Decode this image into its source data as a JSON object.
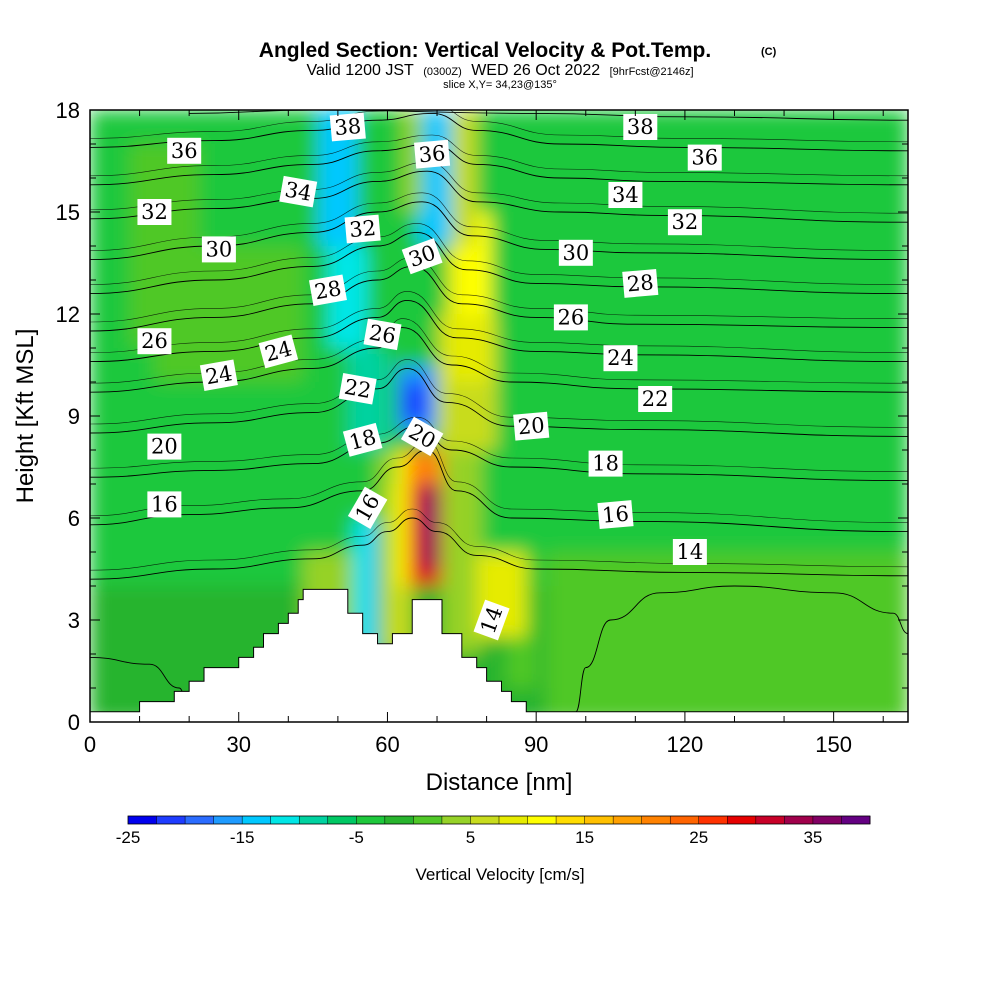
{
  "chart_data": {
    "type": "heatmap",
    "title": "Angled Section: Vertical Velocity & Pot.Temp.",
    "title_mark": "(C)",
    "subtitle_parts": [
      "Valid 1200 JST",
      "(0300Z)",
      "WED 26 Oct 2022",
      "[9hrFcst@2146z]"
    ],
    "slice_text": "slice X,Y= 34,23@135°",
    "xlabel": "Distance [nm]",
    "ylabel": "Height [Kft MSL]",
    "xlim": [
      0,
      165
    ],
    "ylim": [
      0,
      18
    ],
    "xticks": [
      0,
      30,
      60,
      90,
      120,
      150
    ],
    "yticks": [
      0,
      3,
      6,
      9,
      12,
      15,
      18
    ],
    "colorbar": {
      "label": "Vertical Velocity [cm/s]",
      "range": [
        -25,
        40
      ],
      "step": 2.5,
      "tick_values": [
        -25,
        -15,
        -5,
        5,
        15,
        25,
        35
      ],
      "colors": [
        "#0000ee",
        "#1e3cff",
        "#2b6cff",
        "#1e9bff",
        "#00c8ff",
        "#00e6e6",
        "#00d2a0",
        "#00c864",
        "#1ec83c",
        "#28b42d",
        "#50c828",
        "#96d228",
        "#c8dc1e",
        "#e6eb00",
        "#ffff00",
        "#ffdc00",
        "#ffc000",
        "#ffa000",
        "#ff8200",
        "#ff6400",
        "#ff3200",
        "#e60000",
        "#c80028",
        "#a0004b",
        "#820064",
        "#640082"
      ]
    },
    "terrain": [
      [
        0,
        0.3
      ],
      [
        10,
        0.3
      ],
      [
        10,
        0.6
      ],
      [
        17,
        0.6
      ],
      [
        17,
        0.9
      ],
      [
        20,
        0.9
      ],
      [
        20,
        1.2
      ],
      [
        23,
        1.2
      ],
      [
        23,
        1.6
      ],
      [
        30,
        1.6
      ],
      [
        30,
        1.9
      ],
      [
        33,
        1.9
      ],
      [
        33,
        2.2
      ],
      [
        35,
        2.2
      ],
      [
        35,
        2.6
      ],
      [
        38,
        2.6
      ],
      [
        38,
        2.9
      ],
      [
        40,
        2.9
      ],
      [
        40,
        3.2
      ],
      [
        42,
        3.2
      ],
      [
        42,
        3.6
      ],
      [
        43,
        3.6
      ],
      [
        43,
        3.9
      ],
      [
        52,
        3.9
      ],
      [
        52,
        3.2
      ],
      [
        55,
        3.2
      ],
      [
        55,
        2.6
      ],
      [
        58,
        2.6
      ],
      [
        58,
        2.3
      ],
      [
        61,
        2.3
      ],
      [
        61,
        2.6
      ],
      [
        65,
        2.6
      ],
      [
        65,
        3.6
      ],
      [
        71,
        3.6
      ],
      [
        71,
        2.6
      ],
      [
        75,
        2.6
      ],
      [
        75,
        1.9
      ],
      [
        78,
        1.9
      ],
      [
        78,
        1.6
      ],
      [
        80,
        1.6
      ],
      [
        80,
        1.2
      ],
      [
        83,
        1.2
      ],
      [
        83,
        0.9
      ],
      [
        85,
        0.9
      ],
      [
        85,
        0.6
      ],
      [
        88,
        0.6
      ],
      [
        88,
        0.3
      ],
      [
        165,
        0.3
      ]
    ],
    "cells": [
      {
        "x": 0,
        "y": 0,
        "w": 165,
        "h": 18,
        "v": -2
      },
      {
        "x": 0,
        "y": 4,
        "w": 165,
        "h": 14,
        "v": -3
      },
      {
        "x": 92,
        "y": 0,
        "w": 73,
        "h": 5,
        "v": 1
      },
      {
        "x": 13,
        "y": 10,
        "w": 30,
        "h": 4,
        "v": 0
      },
      {
        "x": 8,
        "y": 11,
        "w": 14,
        "h": 6,
        "v": 1
      },
      {
        "x": 43,
        "y": 1,
        "w": 16,
        "h": 4,
        "v": 3
      },
      {
        "x": 46,
        "y": 14,
        "w": 8,
        "h": 4,
        "v": -13
      },
      {
        "x": 48,
        "y": 11,
        "w": 8,
        "h": 3,
        "v": -11
      },
      {
        "x": 52,
        "y": 8,
        "w": 8,
        "h": 3,
        "v": -8
      },
      {
        "x": 53,
        "y": 2,
        "w": 6,
        "h": 4,
        "v": -12
      },
      {
        "x": 56,
        "y": 1,
        "w": 2,
        "h": 5,
        "v": -14
      },
      {
        "x": 58,
        "y": 2,
        "w": 6,
        "h": 6,
        "v": 4
      },
      {
        "x": 60,
        "y": 2,
        "w": 5,
        "h": 5,
        "v": 7
      },
      {
        "x": 62,
        "y": 4,
        "w": 12,
        "h": 4,
        "v": 10
      },
      {
        "x": 64,
        "y": 4,
        "w": 8,
        "h": 4,
        "v": 22
      },
      {
        "x": 65,
        "y": 4,
        "w": 6,
        "h": 3,
        "v": 29
      },
      {
        "x": 67,
        "y": 4.5,
        "w": 3,
        "h": 2.5,
        "v": 35
      },
      {
        "x": 68,
        "y": 5.5,
        "w": 1,
        "h": 1,
        "v": 38
      },
      {
        "x": 71,
        "y": 2,
        "w": 8,
        "h": 6,
        "v": 4
      },
      {
        "x": 70,
        "y": 8,
        "w": 12,
        "h": 4,
        "v": 6
      },
      {
        "x": 72,
        "y": 10,
        "w": 9,
        "h": 4,
        "v": 9
      },
      {
        "x": 74,
        "y": 12,
        "w": 7,
        "h": 3,
        "v": 12
      },
      {
        "x": 72,
        "y": 14,
        "w": 6,
        "h": 4,
        "v": 6
      },
      {
        "x": 62,
        "y": 8.5,
        "w": 8,
        "h": 2,
        "v": -16
      },
      {
        "x": 63,
        "y": 8.8,
        "w": 5,
        "h": 1.2,
        "v": -21
      },
      {
        "x": 66,
        "y": 14,
        "w": 7,
        "h": 4,
        "v": -14
      },
      {
        "x": 63,
        "y": 15,
        "w": 4,
        "h": 3,
        "v": 3
      },
      {
        "x": 84,
        "y": 1,
        "w": 6,
        "h": 4,
        "v": 2
      },
      {
        "x": 78,
        "y": 2.5,
        "w": 10,
        "h": 2.5,
        "v": 8
      },
      {
        "x": 144,
        "y": 6,
        "w": 21,
        "h": 12,
        "v": -3
      },
      {
        "x": 96,
        "y": 6,
        "w": 69,
        "h": 3,
        "v": -4
      }
    ],
    "contours": [
      {
        "level": 14,
        "points": [
          [
            0,
            4.2
          ],
          [
            25,
            4.5
          ],
          [
            45,
            4.8
          ],
          [
            55,
            5.2
          ],
          [
            60,
            5.6
          ],
          [
            65,
            6
          ],
          [
            70,
            5.6
          ],
          [
            78,
            4.9
          ],
          [
            90,
            4.5
          ],
          [
            120,
            4.4
          ],
          [
            165,
            4.3
          ]
        ]
      },
      {
        "level": 16,
        "points": [
          [
            0,
            5.8
          ],
          [
            20,
            6.1
          ],
          [
            40,
            6.3
          ],
          [
            55,
            6.8
          ],
          [
            62,
            7.5
          ],
          [
            68,
            8
          ],
          [
            74,
            6.8
          ],
          [
            85,
            6
          ],
          [
            110,
            5.9
          ],
          [
            165,
            5.6
          ]
        ]
      },
      {
        "level": 18,
        "points": [
          [
            0,
            7.2
          ],
          [
            25,
            7.4
          ],
          [
            45,
            7.6
          ],
          [
            58,
            8.2
          ],
          [
            66,
            8.7
          ],
          [
            73,
            8
          ],
          [
            85,
            7.5
          ],
          [
            110,
            7.3
          ],
          [
            165,
            7.1
          ]
        ]
      },
      {
        "level": 20,
        "points": [
          [
            0,
            8.5
          ],
          [
            25,
            8.8
          ],
          [
            45,
            9.1
          ],
          [
            58,
            9.8
          ],
          [
            64,
            10.4
          ],
          [
            72,
            9.4
          ],
          [
            85,
            8.7
          ],
          [
            110,
            8.6
          ],
          [
            165,
            8.4
          ]
        ]
      },
      {
        "level": 22,
        "points": [
          [
            0,
            9.7
          ],
          [
            25,
            10
          ],
          [
            45,
            10.4
          ],
          [
            58,
            11
          ],
          [
            63,
            11.6
          ],
          [
            73,
            10.5
          ],
          [
            85,
            10
          ],
          [
            110,
            9.8
          ],
          [
            165,
            9.7
          ]
        ]
      },
      {
        "level": 24,
        "points": [
          [
            0,
            10.6
          ],
          [
            25,
            10.9
          ],
          [
            45,
            11.3
          ],
          [
            58,
            11.9
          ],
          [
            64,
            12.4
          ],
          [
            74,
            11.3
          ],
          [
            90,
            10.9
          ],
          [
            110,
            10.8
          ],
          [
            165,
            10.6
          ]
        ]
      },
      {
        "level": 26,
        "points": [
          [
            0,
            11.5
          ],
          [
            25,
            11.9
          ],
          [
            45,
            12.3
          ],
          [
            58,
            13
          ],
          [
            65,
            13.4
          ],
          [
            75,
            12.3
          ],
          [
            90,
            11.9
          ],
          [
            110,
            11.7
          ],
          [
            165,
            11.6
          ]
        ]
      },
      {
        "level": 28,
        "points": [
          [
            0,
            12.6
          ],
          [
            25,
            13
          ],
          [
            45,
            13.4
          ],
          [
            58,
            14
          ],
          [
            66,
            14.4
          ],
          [
            76,
            13.3
          ],
          [
            90,
            12.9
          ],
          [
            110,
            12.8
          ],
          [
            165,
            12.6
          ]
        ]
      },
      {
        "level": 30,
        "points": [
          [
            0,
            13.6
          ],
          [
            25,
            14
          ],
          [
            45,
            14.4
          ],
          [
            58,
            15
          ],
          [
            67,
            15.3
          ],
          [
            77,
            14.3
          ],
          [
            92,
            13.9
          ],
          [
            110,
            13.8
          ],
          [
            165,
            13.6
          ]
        ]
      },
      {
        "level": 32,
        "points": [
          [
            0,
            14.8
          ],
          [
            25,
            15.1
          ],
          [
            45,
            15.4
          ],
          [
            58,
            15.9
          ],
          [
            68,
            16.2
          ],
          [
            78,
            15.3
          ],
          [
            95,
            15
          ],
          [
            115,
            14.9
          ],
          [
            165,
            14.7
          ]
        ]
      },
      {
        "level": 34,
        "points": [
          [
            0,
            15.8
          ],
          [
            25,
            16.1
          ],
          [
            45,
            16.4
          ],
          [
            58,
            16.8
          ],
          [
            69,
            17
          ],
          [
            78,
            16.4
          ],
          [
            95,
            16
          ],
          [
            115,
            15.9
          ],
          [
            165,
            15.8
          ]
        ]
      },
      {
        "level": 36,
        "points": [
          [
            0,
            16.9
          ],
          [
            25,
            17.1
          ],
          [
            45,
            17.4
          ],
          [
            58,
            17.7
          ],
          [
            69,
            17.9
          ],
          [
            78,
            17.4
          ],
          [
            95,
            17
          ],
          [
            120,
            16.9
          ],
          [
            165,
            16.8
          ]
        ]
      },
      {
        "level": 38,
        "points": [
          [
            20,
            17.9
          ],
          [
            45,
            18
          ],
          [
            90,
            17.9
          ],
          [
            120,
            17.8
          ],
          [
            165,
            17.7
          ]
        ]
      },
      {
        "level": 14,
        "points": [
          [
            0,
            1.9
          ],
          [
            12,
            1.7
          ],
          [
            18,
            1.0
          ],
          [
            20,
            0.3
          ]
        ]
      },
      {
        "level": 14,
        "points": [
          [
            98,
            0.3
          ],
          [
            100,
            1.6
          ],
          [
            105,
            3.0
          ],
          [
            115,
            3.8
          ],
          [
            130,
            4.0
          ],
          [
            150,
            3.8
          ],
          [
            162,
            3.2
          ],
          [
            165,
            2.6
          ]
        ]
      }
    ],
    "contour_labels": [
      {
        "text": "36",
        "x": 19,
        "y": 16.8,
        "rot": 0
      },
      {
        "text": "38",
        "x": 52,
        "y": 17.5,
        "rot": -5
      },
      {
        "text": "36",
        "x": 69,
        "y": 16.7,
        "rot": -5
      },
      {
        "text": "38",
        "x": 111,
        "y": 17.5,
        "rot": 0
      },
      {
        "text": "36",
        "x": 124,
        "y": 16.6,
        "rot": 0
      },
      {
        "text": "34",
        "x": 42,
        "y": 15.6,
        "rot": 10
      },
      {
        "text": "34",
        "x": 108,
        "y": 15.5,
        "rot": 0
      },
      {
        "text": "32",
        "x": 13,
        "y": 15,
        "rot": 0
      },
      {
        "text": "32",
        "x": 55,
        "y": 14.5,
        "rot": -5
      },
      {
        "text": "32",
        "x": 120,
        "y": 14.7,
        "rot": 0
      },
      {
        "text": "30",
        "x": 26,
        "y": 13.9,
        "rot": 0
      },
      {
        "text": "30",
        "x": 67,
        "y": 13.7,
        "rot": -20
      },
      {
        "text": "30",
        "x": 98,
        "y": 13.8,
        "rot": 0
      },
      {
        "text": "28",
        "x": 48,
        "y": 12.7,
        "rot": -10
      },
      {
        "text": "28",
        "x": 111,
        "y": 12.9,
        "rot": -5
      },
      {
        "text": "26",
        "x": 13,
        "y": 11.2,
        "rot": 0
      },
      {
        "text": "26",
        "x": 59,
        "y": 11.4,
        "rot": 10
      },
      {
        "text": "26",
        "x": 97,
        "y": 11.9,
        "rot": 0
      },
      {
        "text": "24",
        "x": 38,
        "y": 10.9,
        "rot": -15
      },
      {
        "text": "24",
        "x": 26,
        "y": 10.2,
        "rot": -10
      },
      {
        "text": "24",
        "x": 107,
        "y": 10.7,
        "rot": 0
      },
      {
        "text": "22",
        "x": 54,
        "y": 9.8,
        "rot": 10
      },
      {
        "text": "22",
        "x": 114,
        "y": 9.5,
        "rot": 0
      },
      {
        "text": "20",
        "x": 15,
        "y": 8.1,
        "rot": 0
      },
      {
        "text": "20",
        "x": 67,
        "y": 8.4,
        "rot": 30
      },
      {
        "text": "20",
        "x": 89,
        "y": 8.7,
        "rot": -5
      },
      {
        "text": "18",
        "x": 55,
        "y": 8.3,
        "rot": -15
      },
      {
        "text": "18",
        "x": 104,
        "y": 7.6,
        "rot": 0
      },
      {
        "text": "16",
        "x": 15,
        "y": 6.4,
        "rot": 0
      },
      {
        "text": "16",
        "x": 56,
        "y": 6.3,
        "rot": -60
      },
      {
        "text": "16",
        "x": 106,
        "y": 6.1,
        "rot": -5
      },
      {
        "text": "14",
        "x": 121,
        "y": 5,
        "rot": 0
      },
      {
        "text": "14",
        "x": 81,
        "y": 3,
        "rot": -70
      }
    ]
  }
}
